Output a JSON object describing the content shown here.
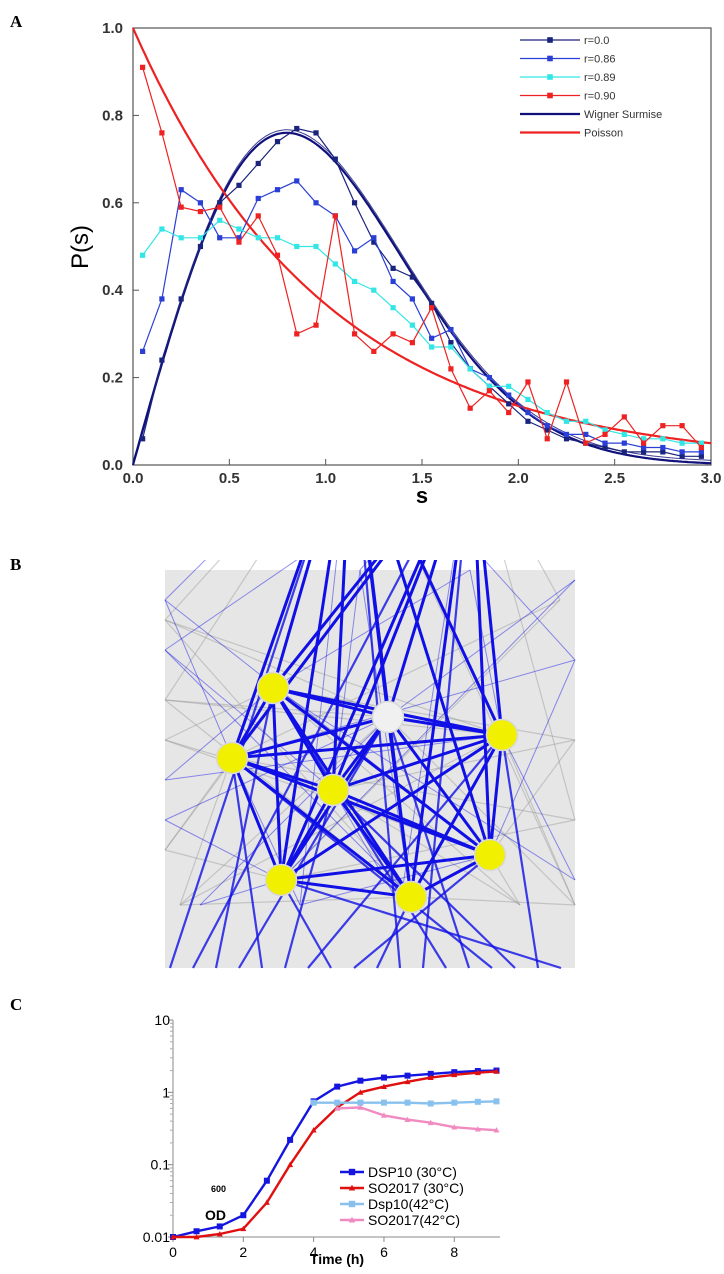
{
  "panels": {
    "a": "A",
    "b": "B",
    "c": "C"
  },
  "chart_data": [
    {
      "panel": "A",
      "type": "line",
      "xlabel": "s",
      "ylabel": "P(s)",
      "xlim": [
        0,
        3.0
      ],
      "ylim": [
        0,
        1.0
      ],
      "xticks": [
        "0.0",
        "0.5",
        "1.0",
        "1.5",
        "2.0",
        "2.5",
        "3.0"
      ],
      "yticks": [
        "0.0",
        "0.2",
        "0.4",
        "0.6",
        "0.8",
        "1.0"
      ],
      "legend_position": "top-right",
      "series": [
        {
          "name": "r=0.0",
          "color": "#1a237e",
          "marker": "square",
          "x": [
            0.05,
            0.15,
            0.25,
            0.35,
            0.45,
            0.55,
            0.65,
            0.75,
            0.85,
            0.95,
            1.05,
            1.15,
            1.25,
            1.35,
            1.45,
            1.55,
            1.65,
            1.75,
            1.85,
            1.95,
            2.05,
            2.15,
            2.25,
            2.35,
            2.45,
            2.55,
            2.65,
            2.75,
            2.85,
            2.95
          ],
          "y": [
            0.06,
            0.24,
            0.38,
            0.5,
            0.6,
            0.64,
            0.69,
            0.74,
            0.77,
            0.76,
            0.7,
            0.6,
            0.51,
            0.45,
            0.43,
            0.37,
            0.28,
            0.22,
            0.18,
            0.14,
            0.1,
            0.08,
            0.06,
            0.05,
            0.04,
            0.03,
            0.03,
            0.03,
            0.02,
            0.02
          ]
        },
        {
          "name": "r=0.86",
          "color": "#2a3fd6",
          "marker": "square",
          "x": [
            0.05,
            0.15,
            0.25,
            0.35,
            0.45,
            0.55,
            0.65,
            0.75,
            0.85,
            0.95,
            1.05,
            1.15,
            1.25,
            1.35,
            1.45,
            1.55,
            1.65,
            1.75,
            1.85,
            1.95,
            2.05,
            2.15,
            2.25,
            2.35,
            2.45,
            2.55,
            2.65,
            2.75,
            2.85,
            2.95
          ],
          "y": [
            0.26,
            0.38,
            0.63,
            0.6,
            0.52,
            0.52,
            0.61,
            0.63,
            0.65,
            0.6,
            0.57,
            0.49,
            0.52,
            0.42,
            0.38,
            0.29,
            0.31,
            0.22,
            0.2,
            0.16,
            0.12,
            0.09,
            0.07,
            0.07,
            0.05,
            0.05,
            0.04,
            0.04,
            0.03,
            0.03
          ]
        },
        {
          "name": "r=0.89",
          "color": "#33e6e6",
          "marker": "square",
          "x": [
            0.05,
            0.15,
            0.25,
            0.35,
            0.45,
            0.55,
            0.65,
            0.75,
            0.85,
            0.95,
            1.05,
            1.15,
            1.25,
            1.35,
            1.45,
            1.55,
            1.65,
            1.75,
            1.85,
            1.95,
            2.05,
            2.15,
            2.25,
            2.35,
            2.45,
            2.55,
            2.65,
            2.75,
            2.85,
            2.95
          ],
          "y": [
            0.48,
            0.54,
            0.52,
            0.52,
            0.56,
            0.54,
            0.52,
            0.52,
            0.5,
            0.5,
            0.46,
            0.42,
            0.4,
            0.36,
            0.32,
            0.27,
            0.27,
            0.22,
            0.18,
            0.18,
            0.15,
            0.12,
            0.1,
            0.1,
            0.08,
            0.07,
            0.06,
            0.06,
            0.05,
            0.05
          ]
        },
        {
          "name": "r=0.90",
          "color": "#ee2222",
          "marker": "square",
          "x": [
            0.05,
            0.15,
            0.25,
            0.35,
            0.45,
            0.55,
            0.65,
            0.75,
            0.85,
            0.95,
            1.05,
            1.15,
            1.25,
            1.35,
            1.45,
            1.55,
            1.65,
            1.75,
            1.85,
            1.95,
            2.05,
            2.15,
            2.25,
            2.35,
            2.45,
            2.55,
            2.65,
            2.75,
            2.85,
            2.95
          ],
          "y": [
            0.91,
            0.76,
            0.59,
            0.58,
            0.59,
            0.51,
            0.57,
            0.48,
            0.3,
            0.32,
            0.57,
            0.3,
            0.26,
            0.3,
            0.28,
            0.36,
            0.22,
            0.13,
            0.17,
            0.12,
            0.19,
            0.06,
            0.19,
            0.05,
            0.07,
            0.11,
            0.05,
            0.09,
            0.09,
            0.04
          ]
        },
        {
          "name": "Wigner Surmise",
          "color": "#10107a",
          "curve": "wigner"
        },
        {
          "name": "Poisson",
          "color": "#ee2222",
          "curve": "poisson"
        }
      ]
    },
    {
      "panel": "C",
      "type": "line",
      "xlabel": "Time (h)",
      "ylabel": "OD",
      "ylabel_subscript": "600",
      "yscale": "log",
      "xlim": [
        0,
        9.3
      ],
      "ylim": [
        0.01,
        10
      ],
      "xticks": [
        "0",
        "2",
        "4",
        "6",
        "8"
      ],
      "yticks": [
        "0.01",
        "0.1",
        "1",
        "10"
      ],
      "legend_position": "bottom-right",
      "series": [
        {
          "name": "DSP10 (30°C)",
          "color": "#1515e0",
          "marker": "square",
          "x": [
            0,
            0.67,
            1.33,
            2,
            2.67,
            3.33,
            4,
            4.67,
            5.33,
            6,
            6.67,
            7.33,
            8,
            8.67,
            9.2
          ],
          "y": [
            0.01,
            0.012,
            0.014,
            0.02,
            0.06,
            0.22,
            0.75,
            1.2,
            1.45,
            1.6,
            1.7,
            1.8,
            1.9,
            1.97,
            2.0
          ]
        },
        {
          "name": "SO2017 (30°C)",
          "color": "#e01010",
          "marker": "triangle",
          "x": [
            0,
            0.67,
            1.33,
            2,
            2.67,
            3.33,
            4,
            4.67,
            5.33,
            6,
            6.67,
            7.33,
            8,
            8.67,
            9.2
          ],
          "y": [
            0.01,
            0.01,
            0.011,
            0.013,
            0.03,
            0.1,
            0.3,
            0.62,
            1.0,
            1.2,
            1.4,
            1.6,
            1.75,
            1.87,
            1.95
          ]
        },
        {
          "name": "Dsp10(42°C)",
          "color": "#88c0ee",
          "marker": "square",
          "x": [
            4,
            4.67,
            5.33,
            6,
            6.67,
            7.33,
            8,
            8.67,
            9.2
          ],
          "y": [
            0.72,
            0.72,
            0.72,
            0.72,
            0.72,
            0.7,
            0.72,
            0.74,
            0.75
          ]
        },
        {
          "name": "SO2017(42°C)",
          "color": "#f08ac0",
          "marker": "triangle",
          "x": [
            4.67,
            5.33,
            6,
            6.67,
            7.33,
            8,
            8.67,
            9.2
          ],
          "y": [
            0.6,
            0.62,
            0.48,
            0.42,
            0.38,
            0.33,
            0.31,
            0.3
          ]
        }
      ]
    }
  ],
  "network": {
    "nodes": [
      {
        "color": "#f0f000"
      },
      {
        "color": "#f0f000"
      },
      {
        "color": "#f0f000"
      },
      {
        "color": "#f0f0f0"
      },
      {
        "color": "#f0f000"
      },
      {
        "color": "#f0f000"
      },
      {
        "color": "#f0f000"
      },
      {
        "color": "#f0f000"
      },
      {
        "color": "#f0f000"
      },
      {
        "color": "#f0f000"
      }
    ],
    "edge_color": "#1010e6",
    "background": "#e6e6e6"
  }
}
